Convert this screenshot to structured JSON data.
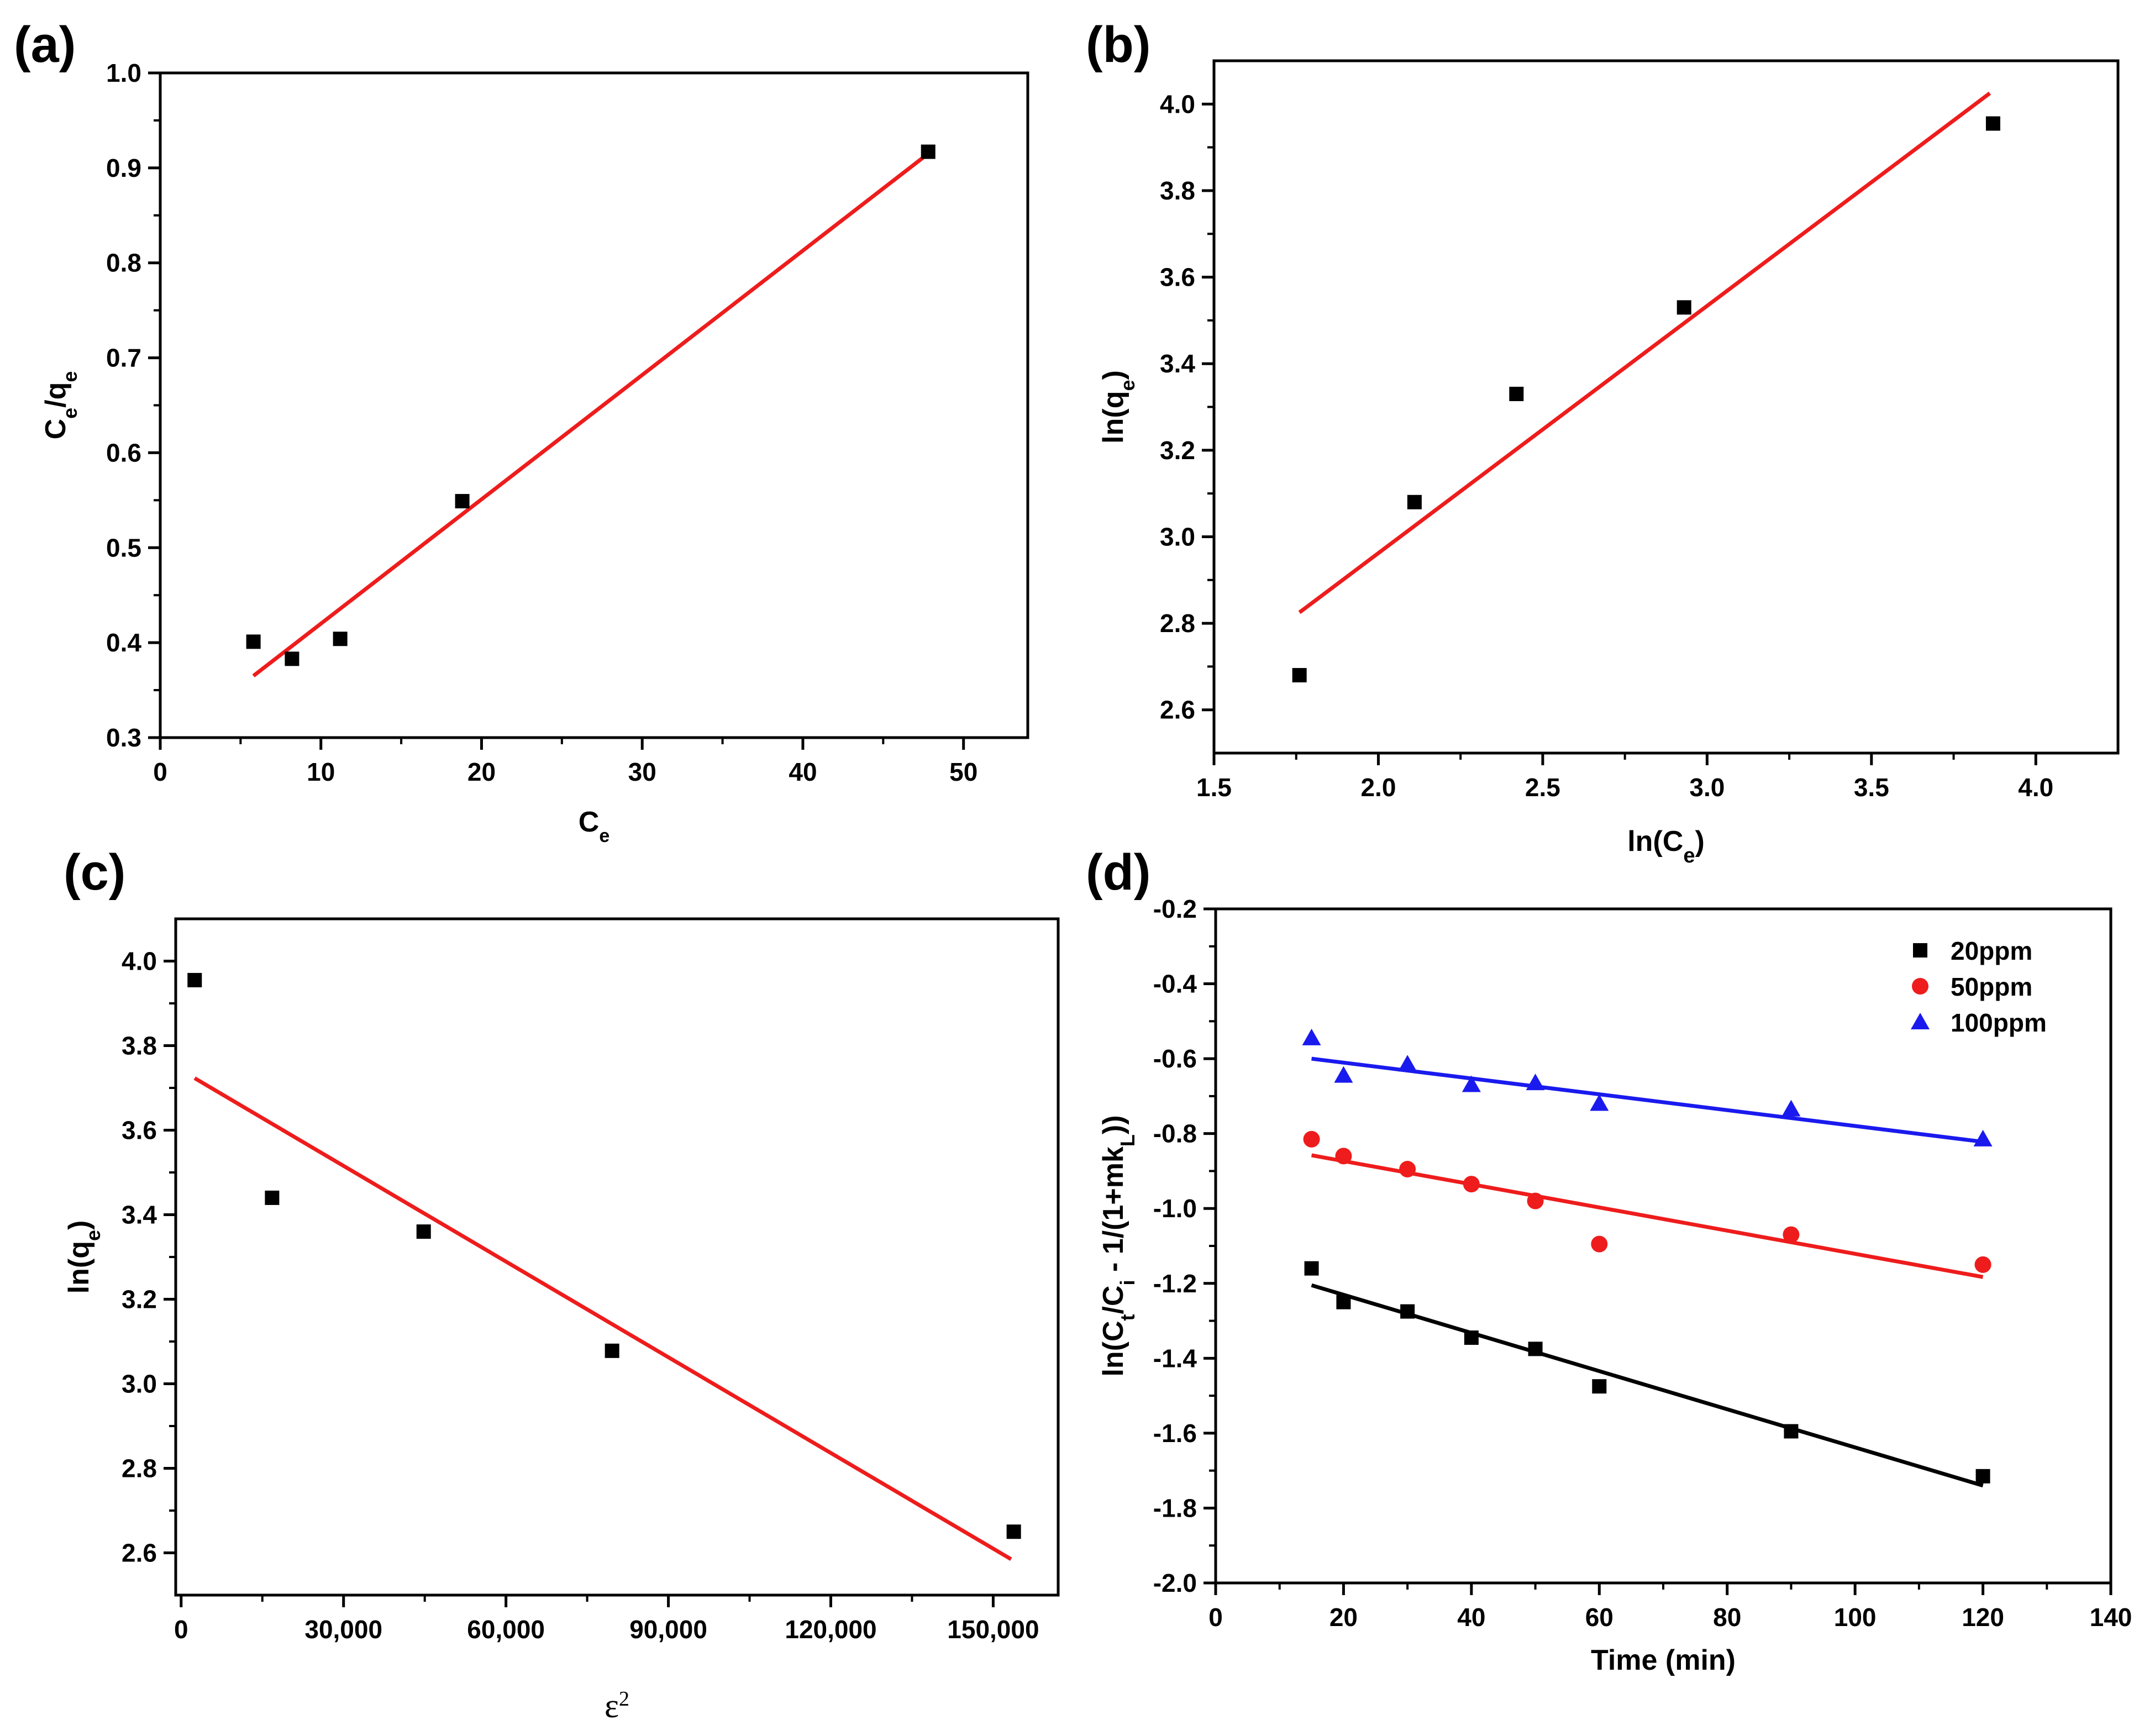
{
  "colors": {
    "fit_red": "#ee1c1c",
    "black": "#000000",
    "red": "#ee1c1c",
    "blue": "#1a1aee"
  },
  "chart_data": [
    {
      "id": "a",
      "panel_label": "(a)",
      "type": "scatter",
      "title": "",
      "xlabel": {
        "main": "C",
        "sub": "e"
      },
      "ylabel": {
        "parts": [
          {
            "t": "C"
          },
          {
            "t": "e",
            "sub": true
          },
          {
            "t": "/q"
          },
          {
            "t": "e",
            "sub": true
          }
        ]
      },
      "xlim": [
        0,
        54
      ],
      "ylim": [
        0.3,
        1.0
      ],
      "xticks": [
        0,
        10,
        20,
        30,
        40,
        50
      ],
      "yticks": [
        0.3,
        0.4,
        0.5,
        0.6,
        0.7,
        0.8,
        0.9,
        1.0
      ],
      "xtick_labels": [
        "0",
        "10",
        "20",
        "30",
        "40",
        "50"
      ],
      "ytick_labels": [
        "0.3",
        "0.4",
        "0.5",
        "0.6",
        "0.7",
        "0.8",
        "0.9",
        "1.0"
      ],
      "series": [
        {
          "name": "data",
          "marker": "square",
          "color": "#000000",
          "x": [
            5.8,
            8.2,
            11.2,
            18.8,
            47.8
          ],
          "y": [
            0.401,
            0.383,
            0.404,
            0.549,
            0.917
          ]
        }
      ],
      "fits": [
        {
          "color": "#ee1c1c",
          "x": [
            5.8,
            47.8
          ],
          "y": [
            0.365,
            0.915
          ]
        }
      ]
    },
    {
      "id": "b",
      "panel_label": "(b)",
      "type": "scatter",
      "title": "",
      "xlabel": {
        "parts": [
          {
            "t": "ln(C"
          },
          {
            "t": "e",
            "sub": true
          },
          {
            "t": ")"
          }
        ]
      },
      "ylabel": {
        "parts": [
          {
            "t": "ln(q"
          },
          {
            "t": "e",
            "sub": true
          },
          {
            "t": ")"
          }
        ]
      },
      "xlim": [
        1.5,
        4.25
      ],
      "ylim": [
        2.5,
        4.1
      ],
      "xticks": [
        1.5,
        2.0,
        2.5,
        3.0,
        3.5,
        4.0
      ],
      "yticks": [
        2.6,
        2.8,
        3.0,
        3.2,
        3.4,
        3.6,
        3.8,
        4.0
      ],
      "xtick_labels": [
        "1.5",
        "2.0",
        "2.5",
        "3.0",
        "3.5",
        "4.0"
      ],
      "ytick_labels": [
        "2.6",
        "2.8",
        "3.0",
        "3.2",
        "3.4",
        "3.6",
        "3.8",
        "4.0"
      ],
      "series": [
        {
          "name": "data",
          "marker": "square",
          "color": "#000000",
          "x": [
            1.76,
            2.11,
            2.42,
            2.93,
            3.87
          ],
          "y": [
            2.68,
            3.08,
            3.33,
            3.53,
            3.955
          ]
        }
      ],
      "fits": [
        {
          "color": "#ee1c1c",
          "x": [
            1.76,
            3.86
          ],
          "y": [
            2.825,
            4.025
          ]
        }
      ]
    },
    {
      "id": "c",
      "panel_label": "(c)",
      "type": "scatter",
      "title": "",
      "xlabel": {
        "parts": [
          {
            "t": "ε"
          },
          {
            "t": "2",
            "sup": true
          }
        ],
        "serif": true
      },
      "ylabel": {
        "parts": [
          {
            "t": "ln(q"
          },
          {
            "t": "e",
            "sub": true
          },
          {
            "t": ")"
          }
        ]
      },
      "xlim": [
        -1000,
        162000
      ],
      "ylim": [
        2.5,
        4.1
      ],
      "xticks": [
        0,
        30000,
        60000,
        90000,
        120000,
        150000
      ],
      "yticks": [
        2.6,
        2.8,
        3.0,
        3.2,
        3.4,
        3.6,
        3.8,
        4.0
      ],
      "xtick_labels": [
        "0",
        "30,000",
        "60,000",
        "90,000",
        "120,000",
        "150,000"
      ],
      "ytick_labels": [
        "2.6",
        "2.8",
        "3.0",
        "3.2",
        "3.4",
        "3.6",
        "3.8",
        "4.0"
      ],
      "series": [
        {
          "name": "data",
          "marker": "square",
          "color": "#000000",
          "x": [
            2500,
            16800,
            44800,
            79600,
            153800
          ],
          "y": [
            3.955,
            3.44,
            3.36,
            3.078,
            2.65
          ]
        }
      ],
      "fits": [
        {
          "color": "#ee1c1c",
          "x": [
            2500,
            153300
          ],
          "y": [
            3.723,
            2.585
          ]
        }
      ]
    },
    {
      "id": "d",
      "panel_label": "(d)",
      "type": "scatter",
      "title": "",
      "xlabel": {
        "parts": [
          {
            "t": "Time (min)"
          }
        ]
      },
      "ylabel": {
        "parts": [
          {
            "t": "ln(C"
          },
          {
            "t": "t",
            "sub": true
          },
          {
            "t": "/C"
          },
          {
            "t": "i",
            "sub": true
          },
          {
            "t": " - 1/(1+mk"
          },
          {
            "t": "L",
            "sub": true
          },
          {
            "t": "))"
          }
        ]
      },
      "xlim": [
        0,
        140
      ],
      "ylim": [
        -2.0,
        -0.2
      ],
      "xticks": [
        0,
        20,
        40,
        60,
        80,
        100,
        120,
        140
      ],
      "yticks": [
        -2.0,
        -1.8,
        -1.6,
        -1.4,
        -1.2,
        -1.0,
        -0.8,
        -0.6,
        -0.4,
        -0.2
      ],
      "xtick_labels": [
        "0",
        "20",
        "40",
        "60",
        "80",
        "100",
        "120",
        "140"
      ],
      "ytick_labels": [
        "-2.0",
        "-1.8",
        "-1.6",
        "-1.4",
        "-1.2",
        "-1.0",
        "-0.8",
        "-0.6",
        "-0.4",
        "-0.2"
      ],
      "legend": "top-right",
      "series": [
        {
          "name": "20ppm",
          "marker": "square",
          "color": "#000000",
          "x": [
            15,
            20,
            30,
            40,
            50,
            60,
            90,
            120
          ],
          "y": [
            -1.16,
            -1.25,
            -1.275,
            -1.345,
            -1.375,
            -1.475,
            -1.595,
            -1.715
          ]
        },
        {
          "name": "50ppm",
          "marker": "circle",
          "color": "#ee1c1c",
          "x": [
            15,
            20,
            30,
            40,
            50,
            60,
            90,
            120
          ],
          "y": [
            -0.815,
            -0.86,
            -0.895,
            -0.935,
            -0.98,
            -1.095,
            -1.07,
            -1.15
          ]
        },
        {
          "name": "100ppm",
          "marker": "triangle",
          "color": "#1a1aee",
          "x": [
            15,
            20,
            30,
            40,
            50,
            60,
            90,
            120
          ],
          "y": [
            -0.545,
            -0.645,
            -0.615,
            -0.67,
            -0.665,
            -0.72,
            -0.735,
            -0.815
          ]
        }
      ],
      "fits": [
        {
          "color": "#000000",
          "x": [
            15,
            120
          ],
          "y": [
            -1.205,
            -1.74
          ]
        },
        {
          "color": "#ee1c1c",
          "x": [
            15,
            120
          ],
          "y": [
            -0.858,
            -1.183
          ]
        },
        {
          "color": "#1a1aee",
          "x": [
            15,
            120
          ],
          "y": [
            -0.6,
            -0.822
          ]
        }
      ]
    }
  ]
}
